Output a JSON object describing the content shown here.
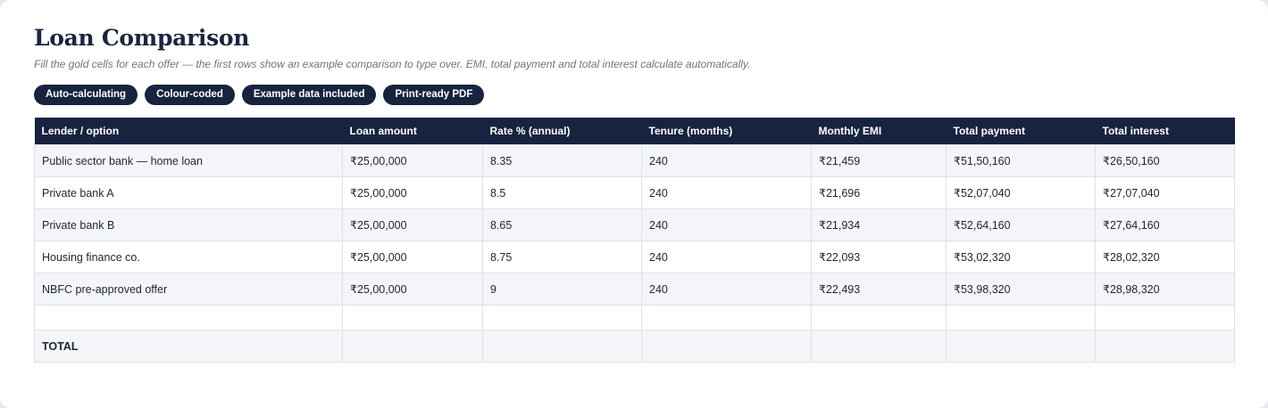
{
  "header": {
    "title": "Loan Comparison",
    "subtitle": "Fill the gold cells for each offer — the first rows show an example comparison to type over. EMI, total payment and total interest calculate automatically."
  },
  "badges": [
    "Auto-calculating",
    "Colour-coded",
    "Example data included",
    "Print-ready PDF"
  ],
  "table": {
    "columns": [
      "Lender / option",
      "Loan amount",
      "Rate % (annual)",
      "Tenure (months)",
      "Monthly EMI",
      "Total payment",
      "Total interest"
    ],
    "rows": [
      [
        "Public sector bank — home loan",
        "₹25,00,000",
        "8.35",
        "240",
        "₹21,459",
        "₹51,50,160",
        "₹26,50,160"
      ],
      [
        "Private bank A",
        "₹25,00,000",
        "8.5",
        "240",
        "₹21,696",
        "₹52,07,040",
        "₹27,07,040"
      ],
      [
        "Private bank B",
        "₹25,00,000",
        "8.65",
        "240",
        "₹21,934",
        "₹52,64,160",
        "₹27,64,160"
      ],
      [
        "Housing finance co.",
        "₹25,00,000",
        "8.75",
        "240",
        "₹22,093",
        "₹53,02,320",
        "₹28,02,320"
      ],
      [
        "NBFC pre-approved offer",
        "₹25,00,000",
        "9",
        "240",
        "₹22,493",
        "₹53,98,320",
        "₹28,98,320"
      ]
    ],
    "total_label": "TOTAL"
  },
  "colors": {
    "header_bg": "#17233f",
    "alt_row_bg": "#f4f5f8",
    "title": "#1a2540"
  }
}
